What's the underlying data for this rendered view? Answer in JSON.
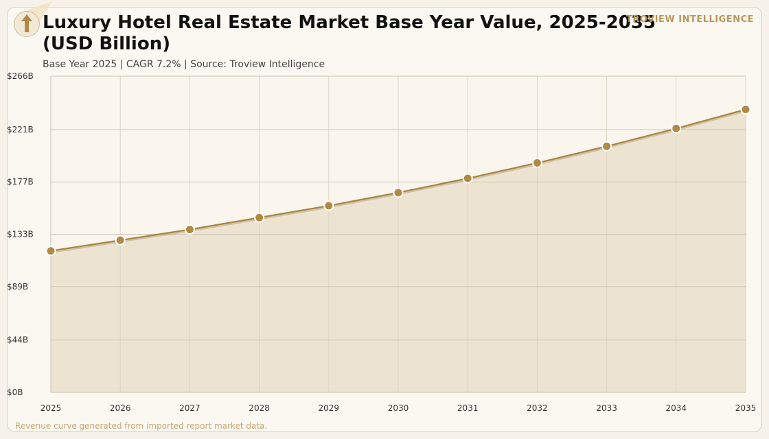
{
  "header": {
    "title": "Luxury Hotel Real Estate Market Base Year Value, 2025-2035 (USD Billion)",
    "subtitle": "Base Year 2025 | CAGR 7.2% | Source: Troview Intelligence",
    "brand": "TROVIEW INTELLIGENCE",
    "logo_icon": "arrow-up-icon"
  },
  "footer": {
    "note": "Revenue curve generated from imported report market data."
  },
  "colors": {
    "line": "#a88540",
    "marker": "#b08a45",
    "area": "#ede3d1",
    "grid": "#cfc6b6"
  },
  "chart_data": {
    "type": "area",
    "title": "Luxury Hotel Real Estate Market Base Year Value, 2025-2035 (USD Billion)",
    "subtitle": "Base Year 2025 | CAGR 7.2% | Source: Troview Intelligence",
    "xlabel": "",
    "ylabel": "",
    "x": [
      2025,
      2026,
      2027,
      2028,
      2029,
      2030,
      2031,
      2032,
      2033,
      2034,
      2035
    ],
    "series": [
      {
        "values": [
          119,
          128,
          137,
          147,
          157,
          168,
          180,
          193,
          207,
          222,
          238
        ]
      }
    ],
    "ylim": [
      0,
      266
    ],
    "yticks": [
      0,
      44,
      89,
      133,
      177,
      221,
      266
    ],
    "ytick_labels": [
      "$0B",
      "$44B",
      "$89B",
      "$133B",
      "$177B",
      "$221B",
      "$266B"
    ],
    "xtick_labels": [
      "2025",
      "2026",
      "2027",
      "2028",
      "2029",
      "2030",
      "2031",
      "2032",
      "2033",
      "2034",
      "2035"
    ],
    "grid": true,
    "legend": "none"
  }
}
